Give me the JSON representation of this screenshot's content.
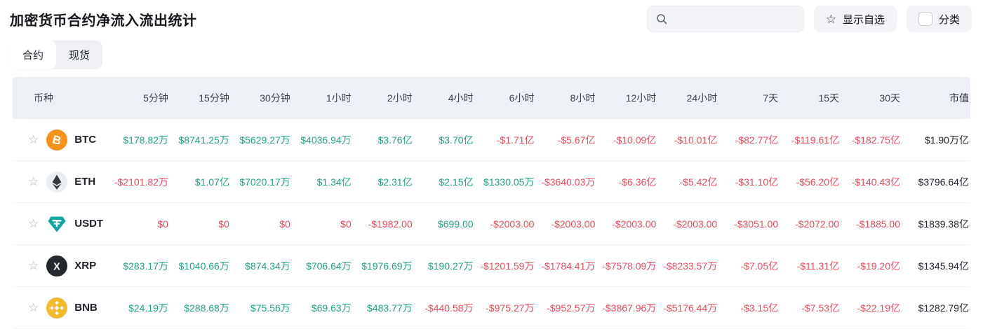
{
  "page": {
    "title": "加密货币合约净流入流出统计"
  },
  "toolbar": {
    "search": {
      "placeholder": "",
      "icon": "search-icon"
    },
    "show_favorites": {
      "label": "显示自选",
      "icon": "star-outline-icon"
    },
    "category": {
      "label": "分类",
      "checked": false
    }
  },
  "tabs": [
    {
      "key": "contract",
      "label": "合约",
      "active": true
    },
    {
      "key": "spot",
      "label": "现货",
      "active": false
    }
  ],
  "colors": {
    "positive": "#1FA383",
    "negative": "#EF4B5C"
  },
  "table": {
    "columns": [
      "币种",
      "5分钟",
      "15分钟",
      "30分钟",
      "1小时",
      "2小时",
      "4小时",
      "6小时",
      "8小时",
      "12小时",
      "24小时",
      "7天",
      "15天",
      "30天",
      "市值"
    ],
    "rows": [
      {
        "symbol": "BTC",
        "icon": "btc",
        "icon_bg": "#F7931A",
        "icon_fg": "#FFFFFF",
        "values": [
          "$178.82万",
          "$8741.25万",
          "$5629.27万",
          "$4036.94万",
          "$3.76亿",
          "$3.70亿",
          "-$1.71亿",
          "-$5.67亿",
          "-$10.09亿",
          "-$10.01亿",
          "-$82.77亿",
          "-$119.61亿",
          "-$182.75亿"
        ],
        "colors": [
          "pos",
          "pos",
          "pos",
          "pos",
          "pos",
          "pos",
          "neg",
          "neg",
          "neg",
          "neg",
          "neg",
          "neg",
          "neg"
        ],
        "market_cap": "$1.90万亿"
      },
      {
        "symbol": "ETH",
        "icon": "eth",
        "icon_bg": "#ECEFF1",
        "icon_fg": "#343840",
        "values": [
          "-$2101.82万",
          "$1.07亿",
          "$7020.17万",
          "$1.34亿",
          "$2.31亿",
          "$2.15亿",
          "$1330.05万",
          "-$3640.03万",
          "-$6.36亿",
          "-$5.42亿",
          "-$31.10亿",
          "-$56.20亿",
          "-$140.43亿"
        ],
        "colors": [
          "neg",
          "pos",
          "pos",
          "pos",
          "pos",
          "pos",
          "pos",
          "neg",
          "neg",
          "neg",
          "neg",
          "neg",
          "neg"
        ],
        "market_cap": "$3796.64亿"
      },
      {
        "symbol": "USDT",
        "icon": "usdt",
        "icon_bg": "#0DA6A0",
        "icon_fg": "#FFFFFF",
        "values": [
          "$0",
          "$0",
          "$0",
          "$0",
          "-$1982.00",
          "$699.00",
          "-$2003.00",
          "-$2003.00",
          "-$2003.00",
          "-$2003.00",
          "-$3051.00",
          "-$2072.00",
          "-$1885.00"
        ],
        "colors": [
          "neg",
          "neg",
          "neg",
          "neg",
          "neg",
          "pos",
          "neg",
          "neg",
          "neg",
          "neg",
          "neg",
          "neg",
          "neg"
        ],
        "market_cap": "$1839.38亿"
      },
      {
        "symbol": "XRP",
        "icon": "xrp",
        "icon_bg": "#23292F",
        "icon_fg": "#FFFFFF",
        "values": [
          "$283.17万",
          "$1040.66万",
          "$874.34万",
          "$706.64万",
          "$1976.69万",
          "$190.27万",
          "-$1201.59万",
          "-$1784.41万",
          "-$7578.09万",
          "-$8233.57万",
          "-$7.05亿",
          "-$11.31亿",
          "-$19.20亿"
        ],
        "colors": [
          "pos",
          "pos",
          "pos",
          "pos",
          "pos",
          "pos",
          "neg",
          "neg",
          "neg",
          "neg",
          "neg",
          "neg",
          "neg"
        ],
        "market_cap": "$1345.94亿"
      },
      {
        "symbol": "BNB",
        "icon": "bnb",
        "icon_bg": "#F3BA2F",
        "icon_fg": "#FFFFFF",
        "values": [
          "$24.19万",
          "$288.68万",
          "$75.56万",
          "$69.63万",
          "$483.77万",
          "-$440.58万",
          "-$975.27万",
          "-$952.57万",
          "-$3867.96万",
          "-$5176.44万",
          "-$3.15亿",
          "-$7.53亿",
          "-$22.19亿"
        ],
        "colors": [
          "pos",
          "pos",
          "pos",
          "pos",
          "pos",
          "neg",
          "neg",
          "neg",
          "neg",
          "neg",
          "neg",
          "neg",
          "neg"
        ],
        "market_cap": "$1282.79亿"
      }
    ]
  }
}
